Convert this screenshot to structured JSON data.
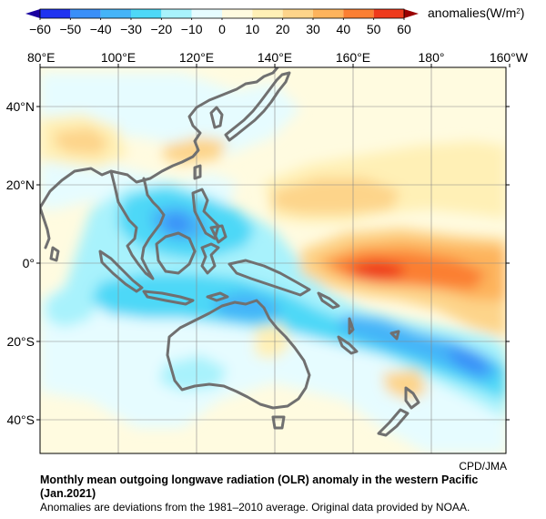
{
  "colorbar": {
    "label": "anomalies(W/m",
    "label_sup": "2",
    "label_end": ")",
    "tick_labels": [
      "−60",
      "−50",
      "−40",
      "−30",
      "−20",
      "−10",
      "0",
      "10",
      "20",
      "30",
      "40",
      "50",
      "60"
    ],
    "colors": [
      "#1f33f0",
      "#3a8ff8",
      "#45b4f8",
      "#4ed8f7",
      "#a8f2fc",
      "#e6fcff",
      "#fffbe0",
      "#fff0b6",
      "#fdd48a",
      "#fdb35c",
      "#fb7f33",
      "#ee3a1c"
    ],
    "low_arrow_color": "#1a00a0",
    "high_arrow_color": "#9a0000"
  },
  "axes": {
    "top_labels": [
      "80°E",
      "100°E",
      "120°E",
      "140°E",
      "160°E",
      "180°",
      "160°W"
    ],
    "left_labels": [
      "40°N",
      "20°N",
      "0°",
      "20°S",
      "40°S"
    ]
  },
  "credit": "CPD/JMA",
  "title_line1": "Monthly mean outgoing longwave radiation (OLR) anomaly in the western Pacific",
  "title_line2": "(Jan.2021)",
  "note": "Anomalies are deviations from the 1981–2010 average. Original data provided by NOAA.",
  "coastline_color": "#707070"
}
